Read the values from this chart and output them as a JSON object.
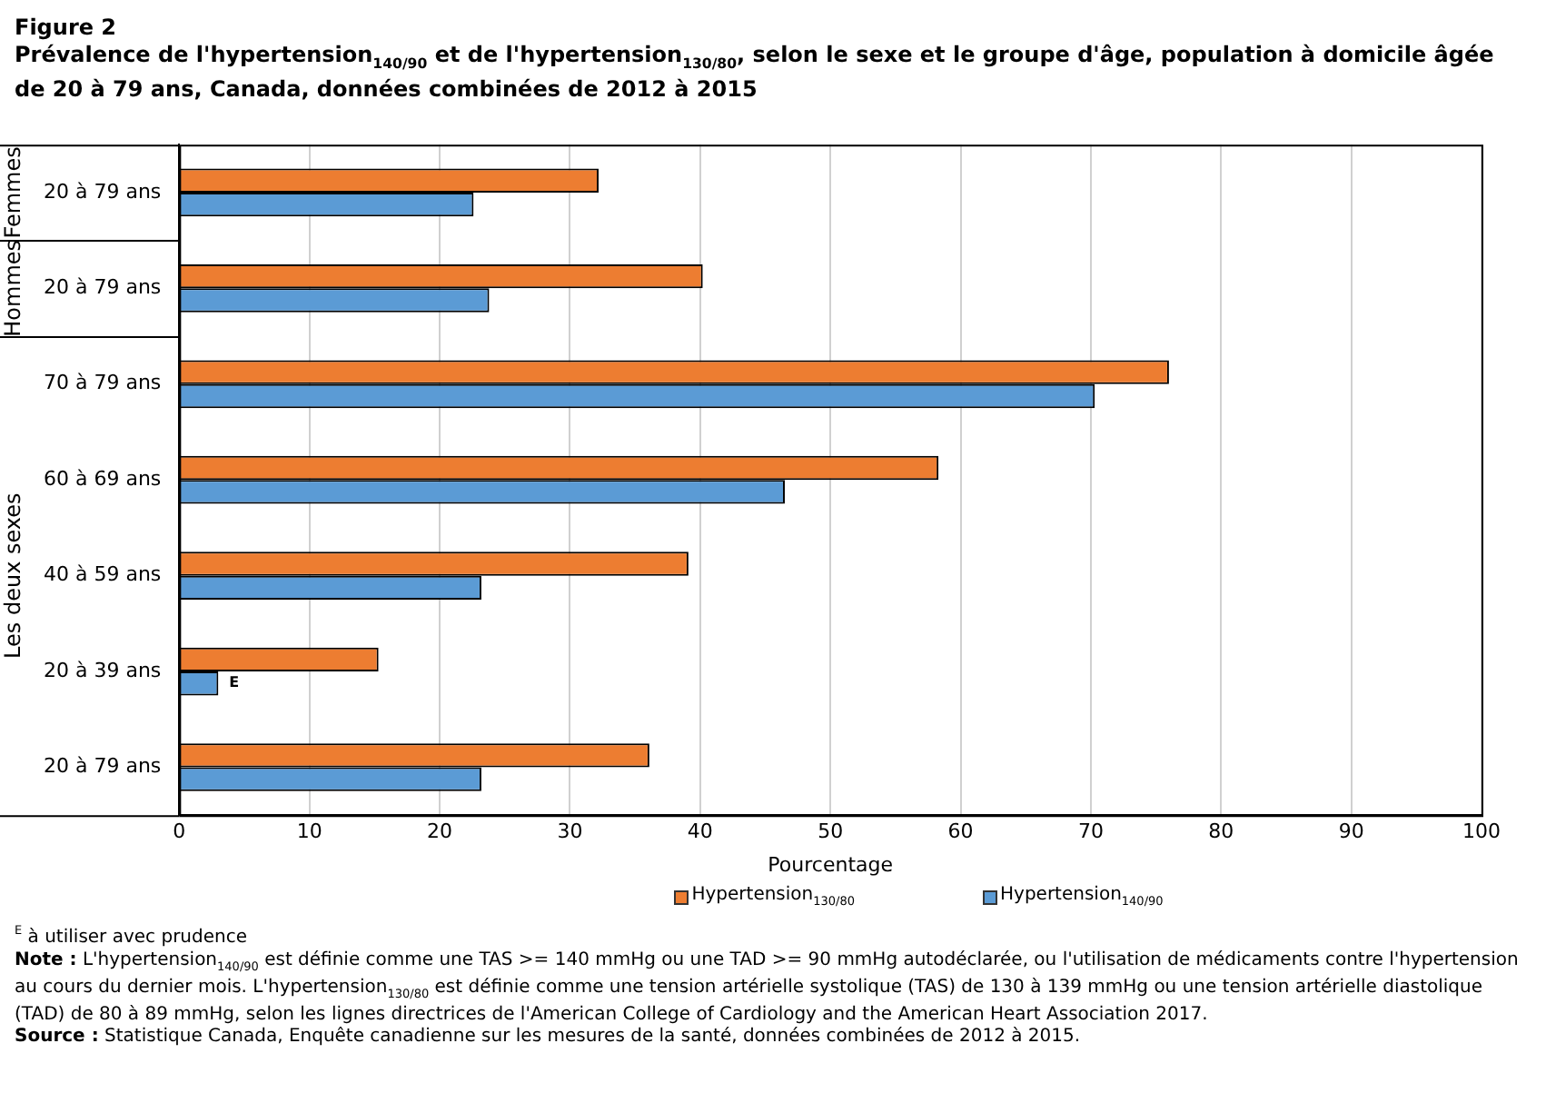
{
  "chart_data": {
    "type": "bar",
    "orientation": "horizontal",
    "title": "Figure  2",
    "subtitle": "Prévalence de l'hypertension$_{140/90}$ et de l'hypertension$_{130/80}$, selon le sexe et le groupe d'âge, population à domicile âgée de 20 à 79 ans, Canada, données combinées de 2012 à 2015",
    "categories": [
      "20 à 79 ans",
      "20 à 79 ans",
      "70 à 79 ans",
      "60 à 69 ans",
      "40 à 59 ans",
      "20 à 39 ans",
      "20 à 79 ans"
    ],
    "series": [
      {
        "name": "Hypertension$_{130/80}$",
        "color": "#ed7d31",
        "values": [
          32.2,
          40.2,
          76.0,
          58.3,
          39.1,
          15.3,
          36.1
        ]
      },
      {
        "name": "Hypertension$_{140/90}$",
        "color": "#5b9bd5",
        "values": [
          22.6,
          23.8,
          70.3,
          46.5,
          23.2,
          3.0,
          23.2
        ],
        "value_labels": [
          null,
          null,
          null,
          null,
          null,
          "E",
          null
        ]
      }
    ],
    "xlabel": "Pourcentage",
    "xlim": [
      0,
      100
    ],
    "xticks": [
      0,
      10,
      20,
      30,
      40,
      50,
      60,
      70,
      80,
      90,
      100
    ],
    "grid": "x",
    "legend": "bottom",
    "annotations": [
      "Femmes",
      "Hommes",
      "Les deux sexes",
      "$^{E}$ à utiliser avec prudence",
      "Note : L'hypertension$_{140/90}$ est définie comme une TAS >= 140 mmHg ou une TAD >= 90 mmHg autodéclarée, ou l'utilisation de médicaments contre l'hypertension au cours du dernier mois. L'hypertension$_{130/80}$ est définie comme une tension artérielle systolique (TAS) de 130 à 139 mmHg ou une tension artérielle diastolique (TAD) de 80 à 89 mmHg, selon les lignes directrices de l'American College of Cardiology and the American Heart Association 2017.",
      "Source : Statistique Canada, Enquête canadienne sur les mesures de la santé, données combinées de 2012 à 2015."
    ]
  }
}
